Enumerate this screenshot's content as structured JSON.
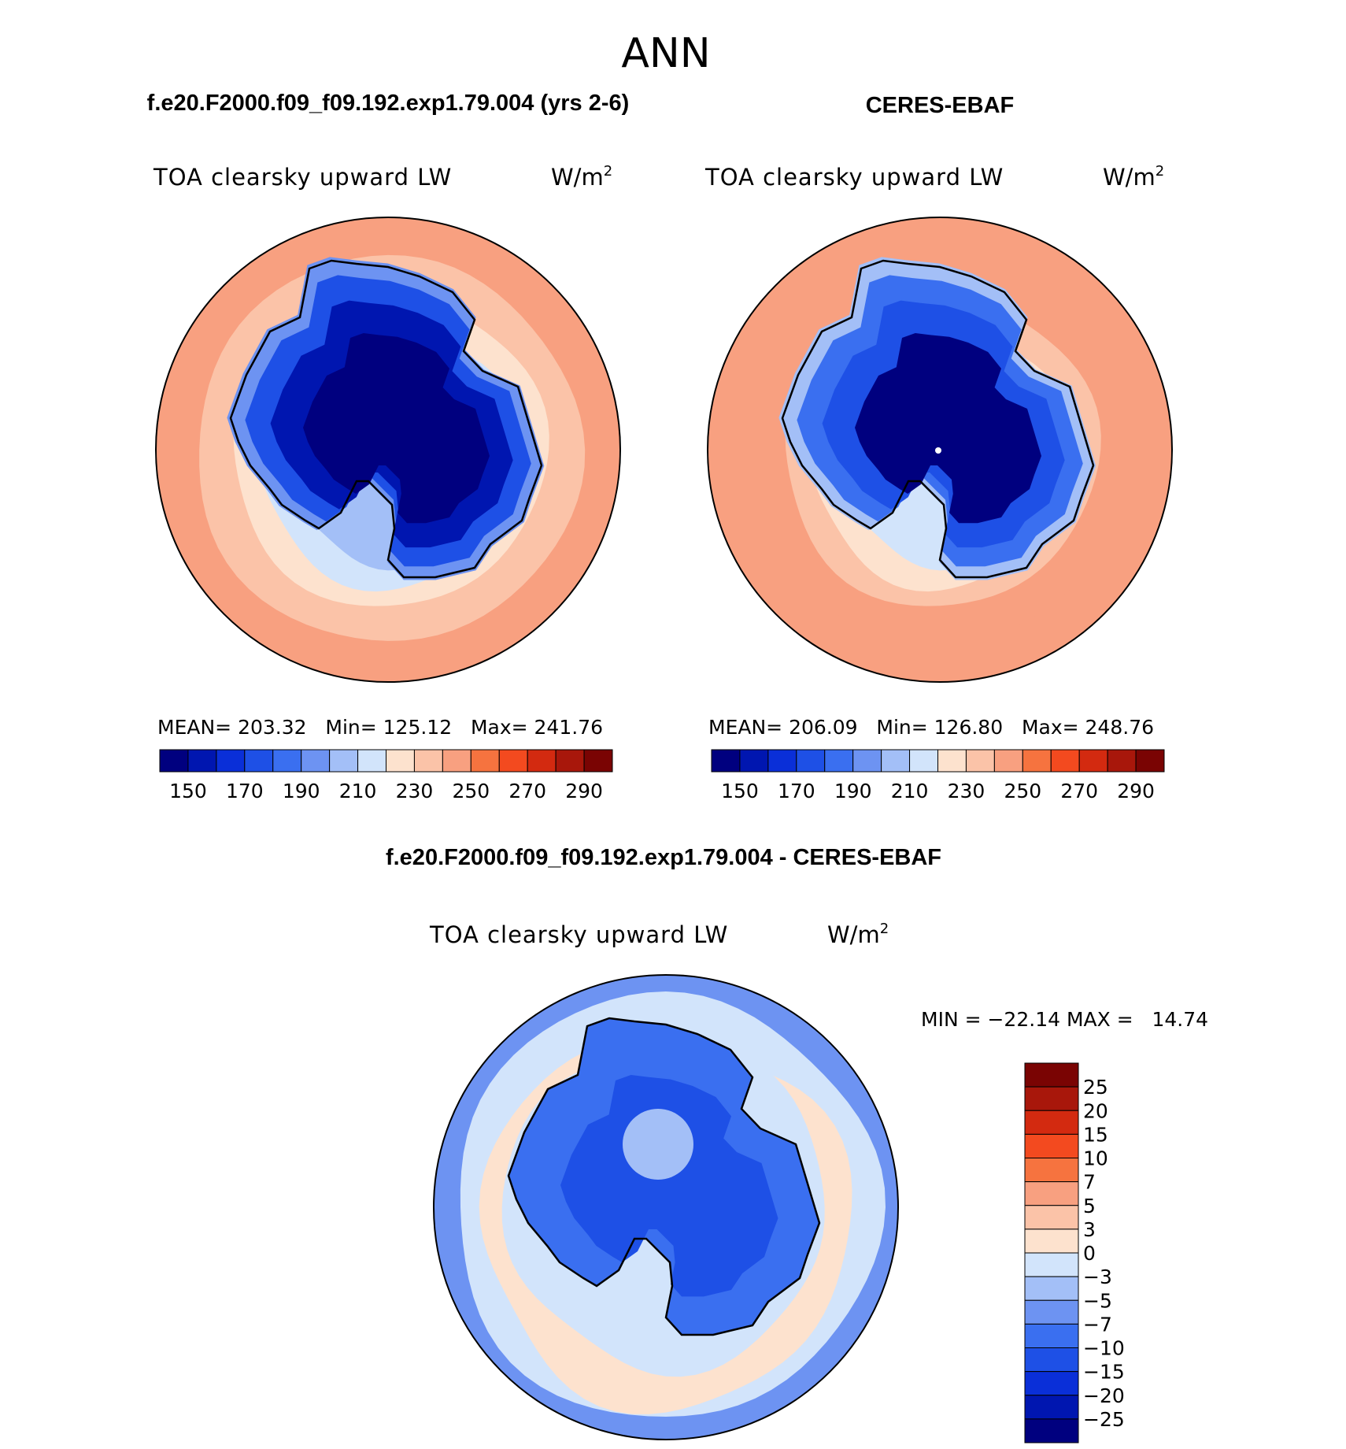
{
  "figure": {
    "season": "ANN",
    "left_case_title": "f.e20.F2000.f09_f09.192.exp1.79.004 (yrs 2-6)",
    "right_case_title": "CERES-EBAF",
    "diff_title": "f.e20.F2000.f09_f09.192.exp1.79.004 - CERES-EBAF"
  },
  "chart_data": [
    {
      "type": "heatmap",
      "name": "model",
      "variable": "TOA clearsky upward LW",
      "units": "W/m",
      "units_sup": "2",
      "projection": "south polar stereographic",
      "stats": "MEAN= 203.32   Min= 125.12   Max= 241.76",
      "mean": 203.32,
      "min": 125.12,
      "max": 241.76,
      "levels": [
        150,
        160,
        170,
        180,
        190,
        200,
        210,
        220,
        230,
        240,
        250,
        260,
        270,
        280,
        290
      ],
      "tick_labels": [
        "150",
        "170",
        "190",
        "210",
        "230",
        "250",
        "270",
        "290"
      ],
      "colors": [
        "#00007f",
        "#0016b0",
        "#0a2fd8",
        "#1e50e6",
        "#3a6ff0",
        "#6d93f2",
        "#a3bff7",
        "#d2e4fb",
        "#fde2ce",
        "#fbc3a8",
        "#f8a080",
        "#f6733f",
        "#f34a1f",
        "#d32a10",
        "#a8170b",
        "#7a0403"
      ],
      "zone_values": [
        247,
        236,
        227,
        216,
        203,
        190,
        170,
        150,
        135
      ]
    },
    {
      "type": "heatmap",
      "name": "obs",
      "variable": "TOA clearsky upward LW",
      "units": "W/m",
      "units_sup": "2",
      "projection": "south polar stereographic",
      "stats": "MEAN= 206.09   Min= 126.80   Max= 248.76",
      "mean": 206.09,
      "min": 126.8,
      "max": 248.76,
      "levels": [
        150,
        160,
        170,
        180,
        190,
        200,
        210,
        220,
        230,
        240,
        250,
        260,
        270,
        280,
        290
      ],
      "tick_labels": [
        "150",
        "170",
        "190",
        "210",
        "230",
        "250",
        "270",
        "290"
      ],
      "colors": [
        "#00007f",
        "#0016b0",
        "#0a2fd8",
        "#1e50e6",
        "#3a6ff0",
        "#6d93f2",
        "#a3bff7",
        "#d2e4fb",
        "#fde2ce",
        "#fbc3a8",
        "#f8a080",
        "#f6733f",
        "#f34a1f",
        "#d32a10",
        "#a8170b",
        "#7a0403"
      ],
      "zone_values": [
        248,
        242,
        234,
        226,
        214,
        200,
        185,
        170,
        140
      ]
    },
    {
      "type": "heatmap",
      "name": "difference",
      "variable": "TOA clearsky upward LW",
      "units": "W/m",
      "units_sup": "2",
      "projection": "south polar stereographic",
      "stats": "MIN = −22.14 MAX =   14.74",
      "min": -22.14,
      "max": 14.74,
      "levels": [
        -25,
        -20,
        -15,
        -10,
        -7,
        -5,
        -3,
        0,
        3,
        5,
        7,
        10,
        15,
        20,
        25
      ],
      "tick_labels": [
        "−25",
        "−20",
        "−15",
        "−10",
        "−7",
        "−5",
        "−3",
        "0",
        "3",
        "5",
        "7",
        "10",
        "15",
        "20",
        "25"
      ],
      "colors": [
        "#00007f",
        "#0016b0",
        "#0a2fd8",
        "#1e50e6",
        "#3a6ff0",
        "#6d93f2",
        "#a3bff7",
        "#d2e4fb",
        "#fde2ce",
        "#fbc3a8",
        "#f8a080",
        "#f6733f",
        "#f34a1f",
        "#d32a10",
        "#a8170b",
        "#7a0403"
      ],
      "zone_values": [
        -6,
        -2,
        1.5,
        -2,
        -8,
        -12,
        -4
      ]
    }
  ]
}
